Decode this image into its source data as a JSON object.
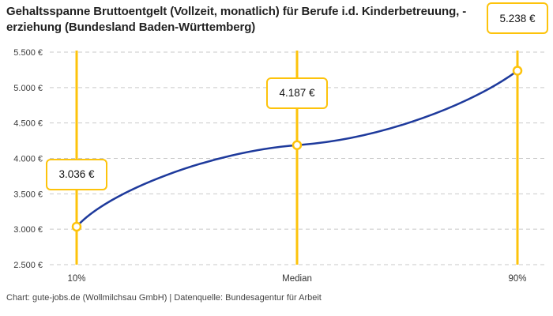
{
  "header": {
    "title_line1": "Gehaltsspanne Bruttoentgelt (Vollzeit, monatlich) für Berufe i.d. Kinderbetreuung, -",
    "title_line2": "erziehung (Bundesland Baden-Württemberg)"
  },
  "footer": {
    "text": "Chart: gute-jobs.de (Wollmilchsau GmbH) | Datenquelle: Bundesagentur für Arbeit"
  },
  "chart_data": {
    "type": "line",
    "title": "Gehaltsspanne Bruttoentgelt (Vollzeit, monatlich) für Berufe i.d. Kinderbetreuung, -erziehung (Bundesland Baden-Württemberg)",
    "categories": [
      "10%",
      "Median",
      "90%"
    ],
    "values": [
      3036,
      4187,
      5238
    ],
    "point_labels": [
      "3.036 €",
      "4.187 €",
      "5.238 €"
    ],
    "xlabel": "",
    "ylabel": "",
    "ylim": [
      2500,
      5500
    ],
    "ytick_step": 500,
    "ytick_labels": [
      "2.500 €",
      "3.000 €",
      "3.500 €",
      "4.000 €",
      "4.500 €",
      "5.000 €",
      "5.500 €"
    ],
    "grid": "horizontal-dashed",
    "legend": "none",
    "colors": {
      "curve": "#1e3a9c",
      "accent_yellow": "#fdc30b",
      "marker_fill": "#ffffff",
      "grid": "#c9c9c9",
      "title_text": "#222222",
      "axis_text": "#3a3a3a",
      "footer_text": "#444444",
      "background": "#ffffff"
    }
  }
}
